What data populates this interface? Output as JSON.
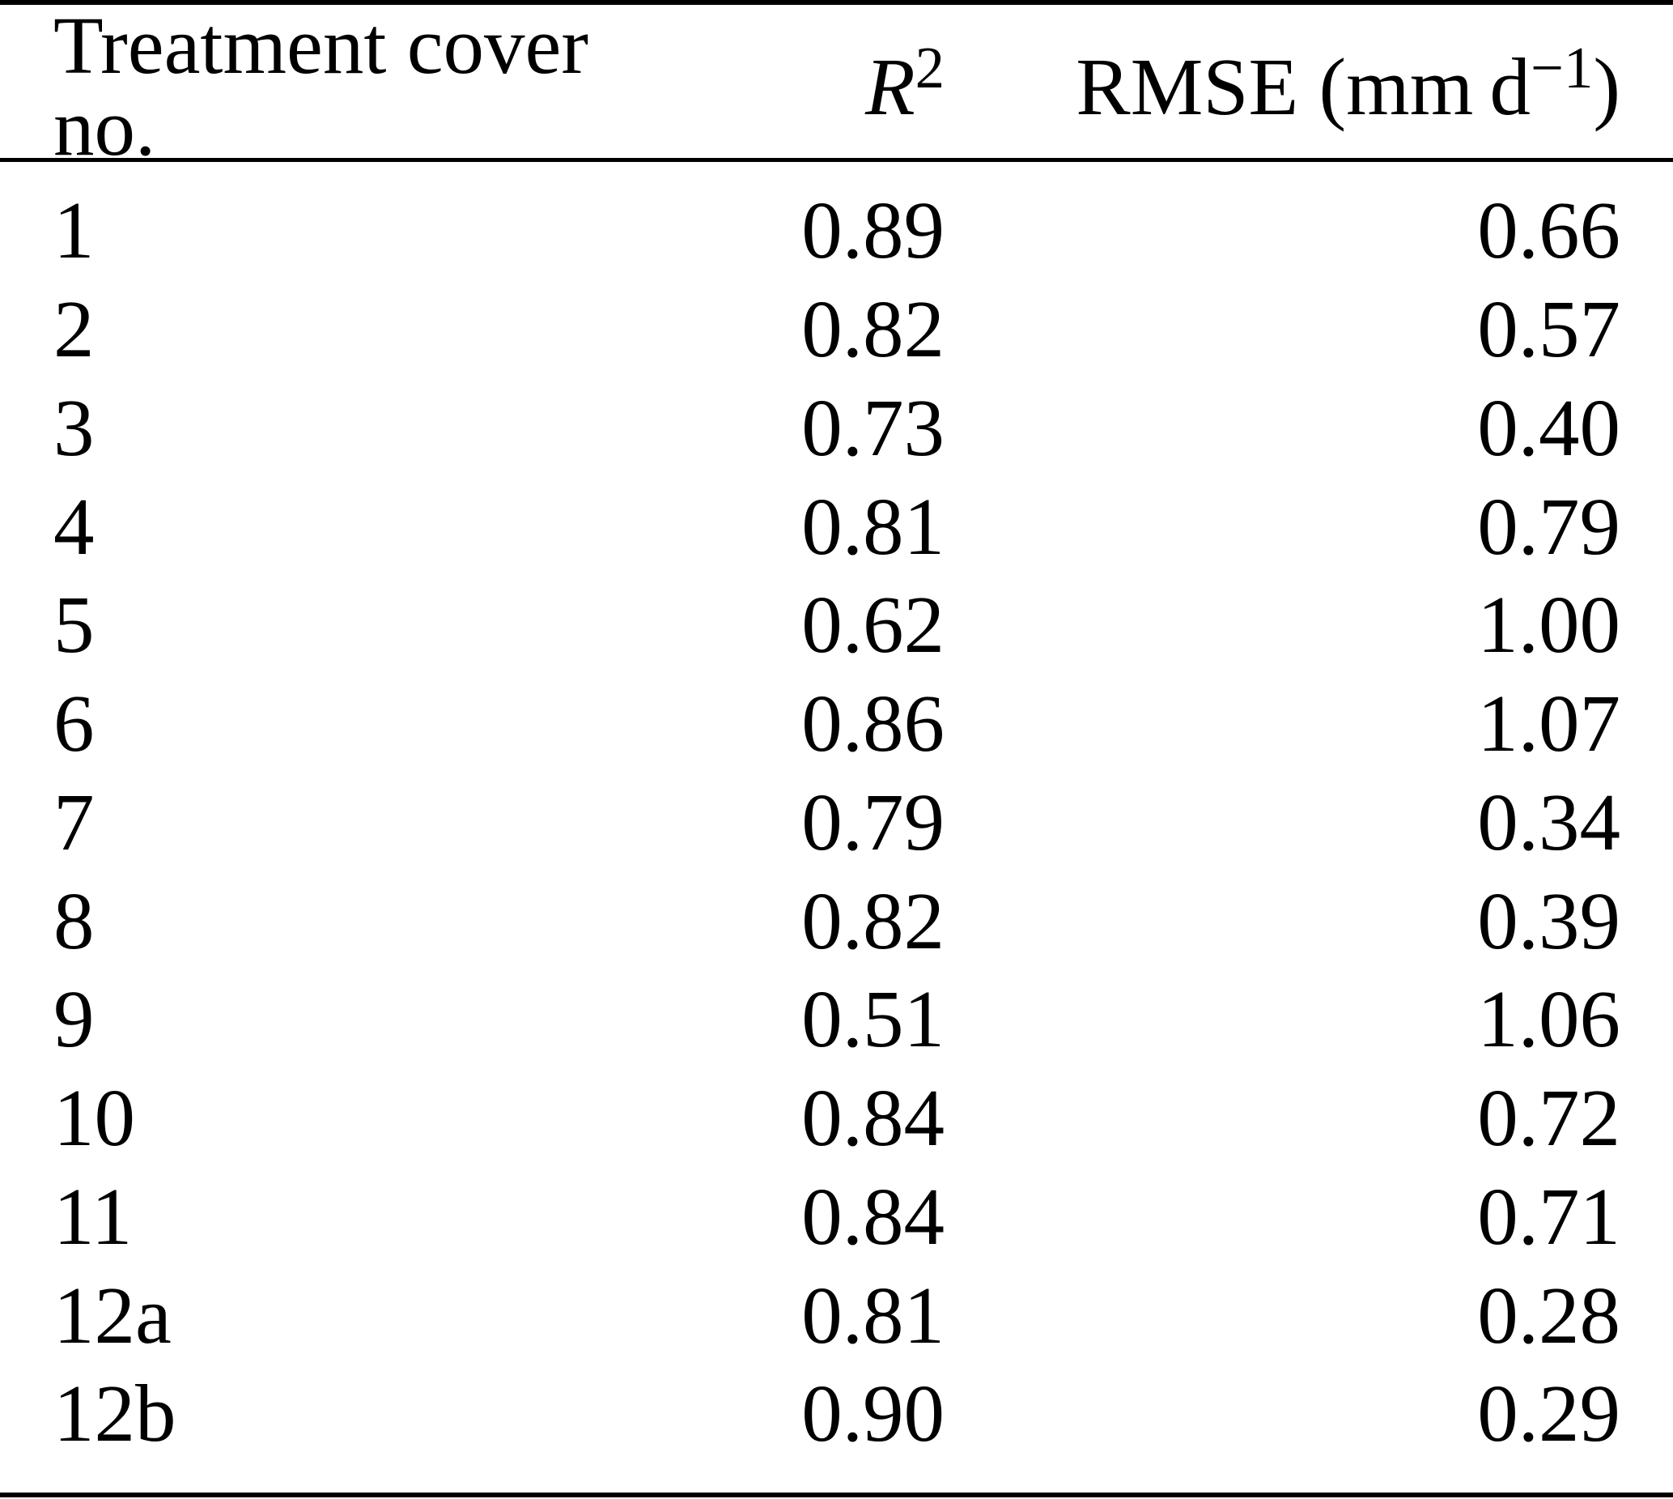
{
  "table": {
    "header": {
      "treatment_col": "Treatment cover no.",
      "r2_base": "R",
      "r2_sup": "2",
      "rmse_prefix": "RMSE (mm d",
      "rmse_sup": "−1",
      "rmse_suffix": ")"
    },
    "rows": [
      {
        "no": "1",
        "r2": "0.89",
        "rmse": "0.66"
      },
      {
        "no": "2",
        "r2": "0.82",
        "rmse": "0.57"
      },
      {
        "no": "3",
        "r2": "0.73",
        "rmse": "0.40"
      },
      {
        "no": "4",
        "r2": "0.81",
        "rmse": "0.79"
      },
      {
        "no": "5",
        "r2": "0.62",
        "rmse": "1.00"
      },
      {
        "no": "6",
        "r2": "0.86",
        "rmse": "1.07"
      },
      {
        "no": "7",
        "r2": "0.79",
        "rmse": "0.34"
      },
      {
        "no": "8",
        "r2": "0.82",
        "rmse": "0.39"
      },
      {
        "no": "9",
        "r2": "0.51",
        "rmse": "1.06"
      },
      {
        "no": "10",
        "r2": "0.84",
        "rmse": "0.72"
      },
      {
        "no": "11",
        "r2": "0.84",
        "rmse": "0.71"
      },
      {
        "no": "12a",
        "r2": "0.81",
        "rmse": "0.28"
      },
      {
        "no": "12b",
        "r2": "0.90",
        "rmse": "0.29"
      }
    ]
  },
  "colors": {
    "text": "#000000",
    "background": "#ffffff",
    "rule": "#000000"
  }
}
